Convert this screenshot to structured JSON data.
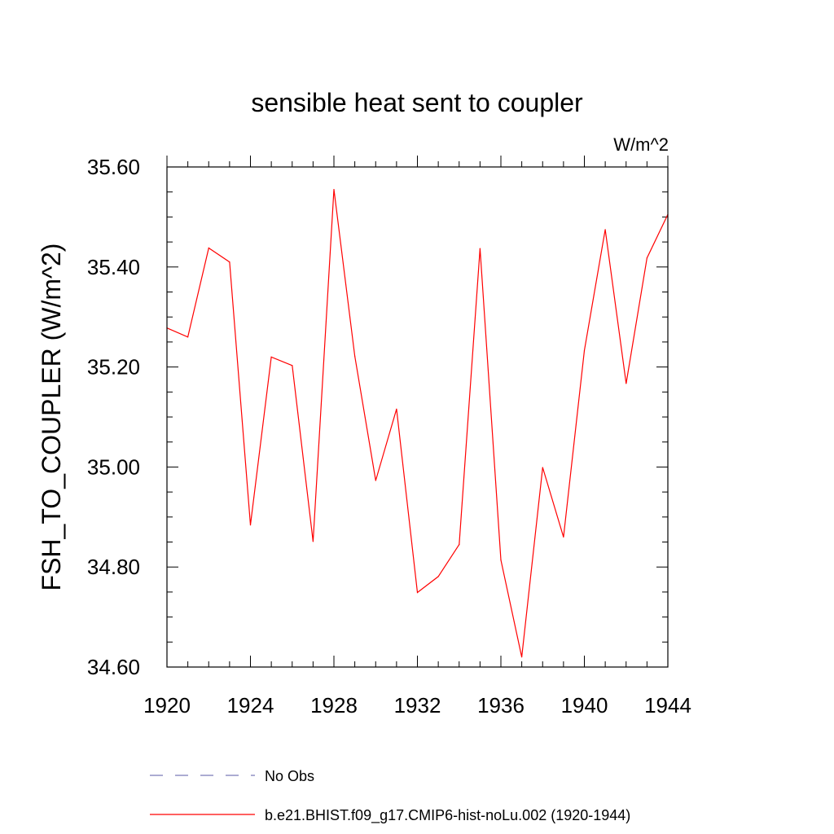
{
  "chart_data": {
    "type": "line",
    "title": "sensible heat sent to coupler",
    "units": "W/m^2",
    "ylabel": "FSH_TO_COUPLER  (W/m^2)",
    "xlabel": "",
    "xlim": [
      1920,
      1944
    ],
    "ylim": [
      34.6,
      35.6
    ],
    "x_ticks": [
      1920,
      1924,
      1928,
      1932,
      1936,
      1940,
      1944
    ],
    "x_tick_labels": [
      "1920",
      "1924",
      "1928",
      "1932",
      "1936",
      "1940",
      "1944"
    ],
    "y_ticks": [
      34.6,
      34.8,
      35.0,
      35.2,
      35.4,
      35.6
    ],
    "y_tick_labels": [
      "34.60",
      "34.80",
      "35.00",
      "35.20",
      "35.40",
      "35.60"
    ],
    "grid": false,
    "x": [
      1920,
      1921,
      1922,
      1923,
      1924,
      1925,
      1926,
      1927,
      1928,
      1929,
      1930,
      1931,
      1932,
      1933,
      1934,
      1935,
      1936,
      1937,
      1938,
      1939,
      1940,
      1941,
      1942,
      1943,
      1944
    ],
    "series": [
      {
        "name": "b.e21.BHIST.f09_g17.CMIP6-hist-noLu.002 (1920-1944)",
        "color": "#ff0000",
        "style": "solid",
        "values": [
          35.278,
          35.26,
          35.438,
          35.41,
          34.884,
          35.22,
          35.203,
          34.851,
          35.555,
          35.222,
          34.973,
          35.116,
          34.749,
          34.781,
          34.845,
          35.437,
          34.814,
          34.62,
          34.999,
          34.86,
          35.233,
          35.475,
          35.167,
          35.418,
          35.505
        ]
      }
    ],
    "legend": {
      "placement": "bottom",
      "entries": [
        {
          "label": "No Obs",
          "color": "#7a7ab8",
          "style": "dashed"
        },
        {
          "label": "b.e21.BHIST.f09_g17.CMIP6-hist-noLu.002 (1920-1944)",
          "color": "#ff0000",
          "style": "solid"
        }
      ]
    }
  }
}
